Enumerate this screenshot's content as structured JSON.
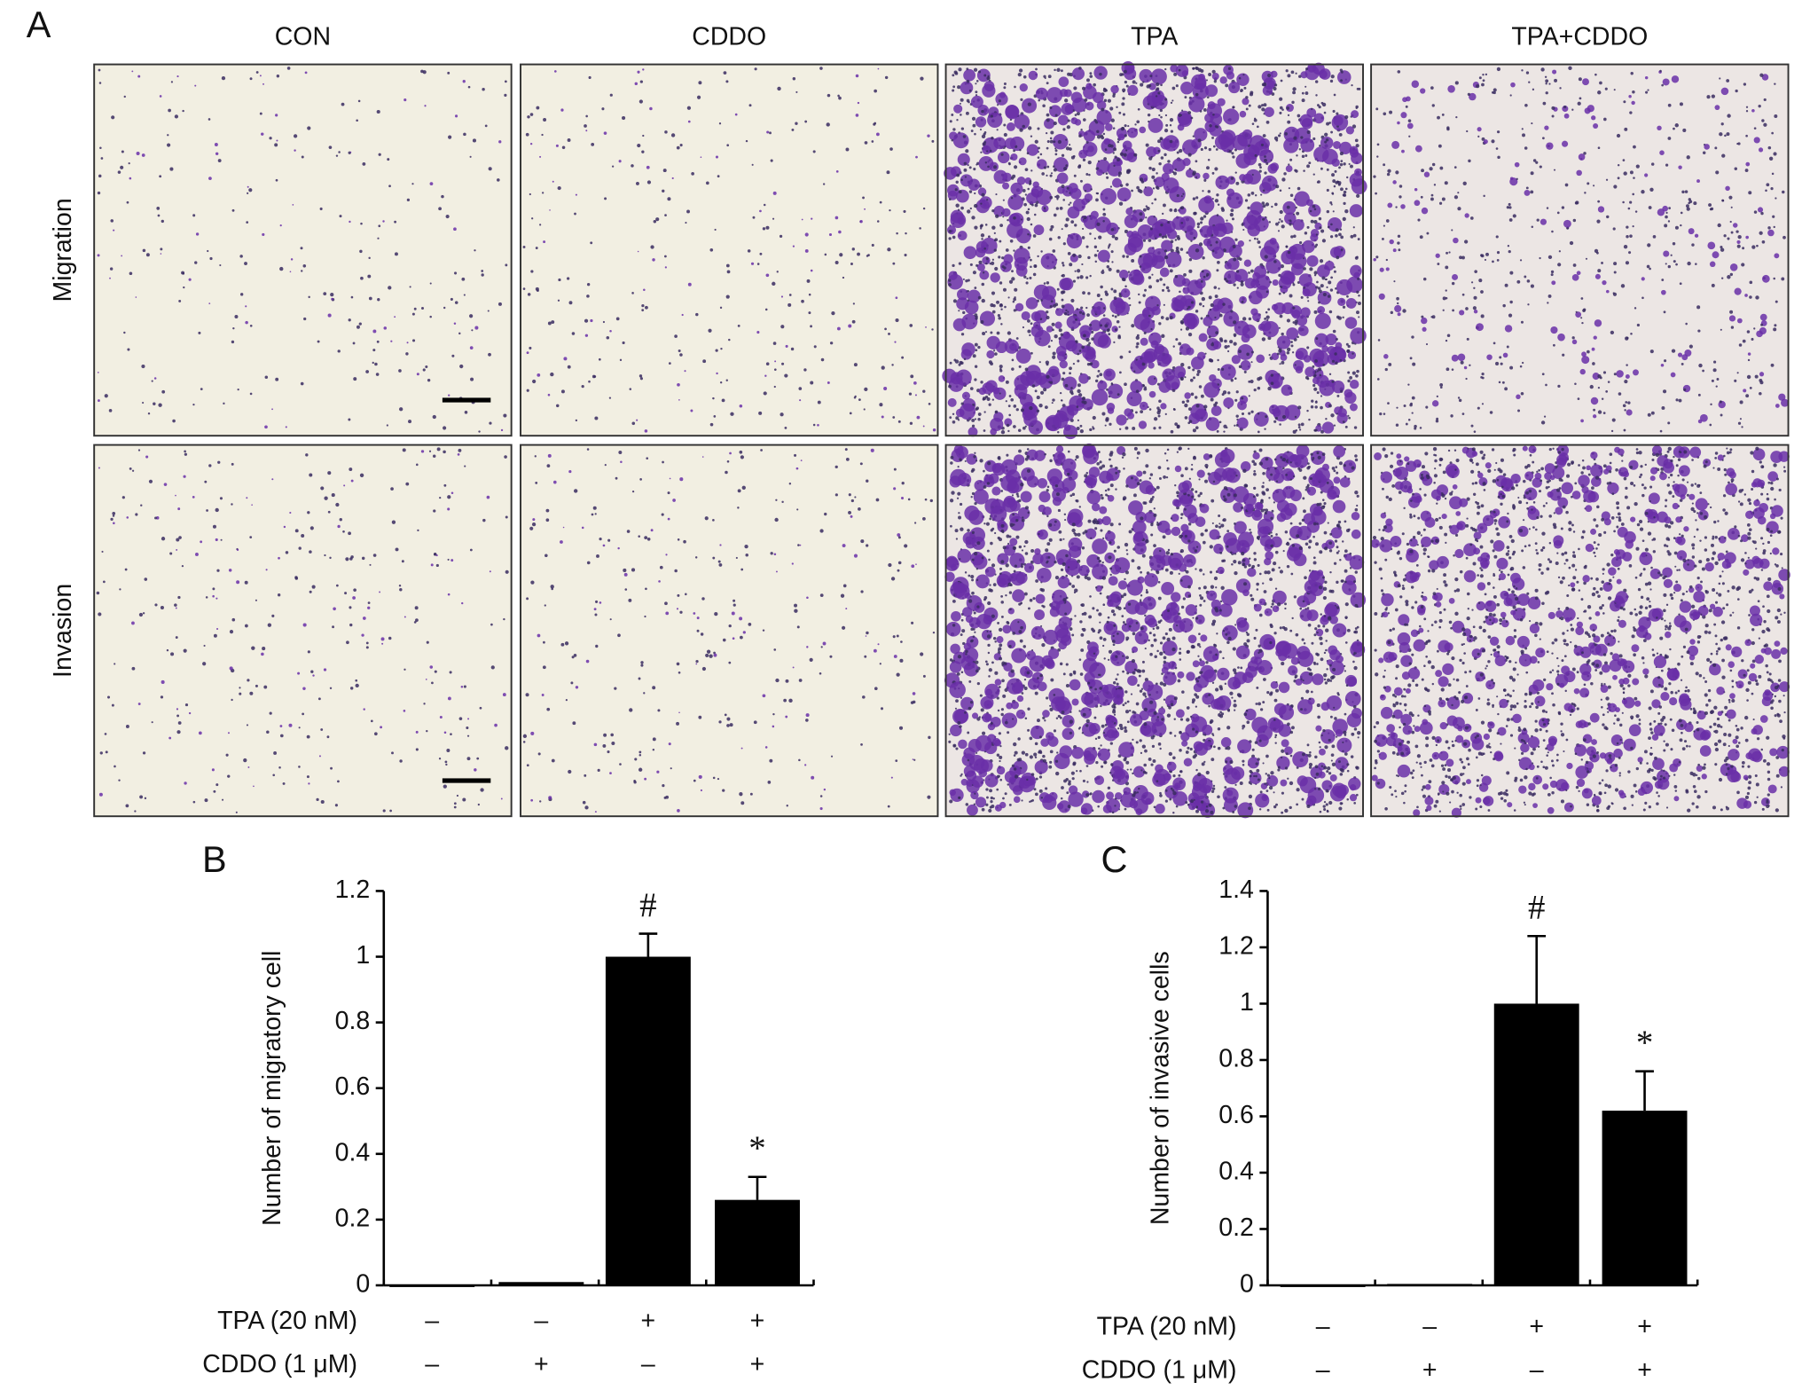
{
  "panel_labels": [
    "A",
    "B",
    "C"
  ],
  "micrographs": {
    "columns": [
      "CON",
      "CDDO",
      "TPA",
      "TPA+CDDO"
    ],
    "rows": [
      "Migration",
      "Invasion"
    ]
  },
  "chart_data": [
    {
      "type": "bar",
      "ylabel": "Number of migratory cell",
      "color": "#000000",
      "values": [
        0,
        0.01,
        1.0,
        0.26
      ],
      "errors": [
        0,
        0.005,
        0.07,
        0.07
      ],
      "markers": [
        null,
        null,
        "#",
        "*"
      ],
      "ylim": [
        0,
        1.2
      ],
      "yticks": [
        0,
        0.2,
        0.4,
        0.6,
        0.8,
        1,
        1.2
      ],
      "treatments": [
        {
          "name": "TPA (20 nM)",
          "marks": [
            "–",
            "–",
            "+",
            "+"
          ]
        },
        {
          "name": "CDDO (1 μM)",
          "marks": [
            "–",
            "+",
            "–",
            "+"
          ]
        }
      ]
    },
    {
      "type": "bar",
      "ylabel": "Number of invasive cells",
      "color": "#000000",
      "values": [
        0,
        0.005,
        1.0,
        0.62
      ],
      "errors": [
        0,
        0.002,
        0.24,
        0.14
      ],
      "markers": [
        null,
        null,
        "#",
        "*"
      ],
      "ylim": [
        0,
        1.4
      ],
      "yticks": [
        0,
        0.2,
        0.4,
        0.6,
        0.8,
        1,
        1.2,
        1.4
      ],
      "treatments": [
        {
          "name": "TPA (20 nM)",
          "marks": [
            "–",
            "–",
            "+",
            "+"
          ]
        },
        {
          "name": "CDDO (1 μM)",
          "marks": [
            "–",
            "+",
            "–",
            "+"
          ]
        }
      ]
    }
  ]
}
